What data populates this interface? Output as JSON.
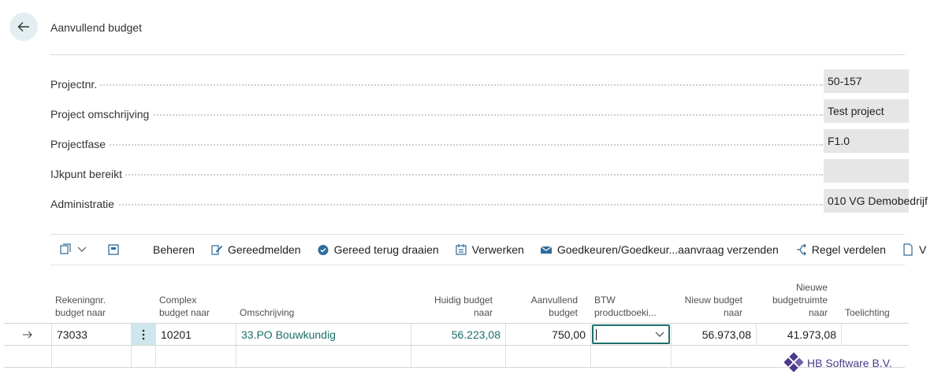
{
  "header": {
    "title": "Aanvullend budget"
  },
  "fields": [
    {
      "label": "Projectnr.",
      "value": "50-157"
    },
    {
      "label": "Project omschrijving",
      "value": "Test project"
    },
    {
      "label": "Projectfase",
      "value": "F1.0"
    },
    {
      "label": "IJkpunt bereikt",
      "value": ""
    },
    {
      "label": "Administratie",
      "value": "010 VG Demobedrijf"
    }
  ],
  "toolbar": {
    "manage": "Beheren",
    "ready": "Gereedmelden",
    "undo_ready": "Gereed terug draaien",
    "process": "Verwerken",
    "approve": "Goedkeuren/Goedkeur...aanvraag verzenden",
    "distribute": "Regel verdelen",
    "more": "V"
  },
  "columns": {
    "account_l1": "Rekeningnr.",
    "account_l2": "budget naar",
    "complex_l1": "Complex",
    "complex_l2": "budget naar",
    "description": "Omschrijving",
    "current_l1": "Huidig budget",
    "current_l2": "naar",
    "additional_l1": "Aanvullend",
    "additional_l2": "budget",
    "vat_l1": "BTW",
    "vat_l2": "productboeki...",
    "new_l1": "Nieuw budget",
    "new_l2": "naar",
    "room_l1": "Nieuwe",
    "room_l2": "budgetruimte",
    "room_l3": "naar",
    "note": "Toelichting"
  },
  "rows": [
    {
      "account": "73033",
      "complex": "10201",
      "description": "33.PO Bouwkundig",
      "current": "56.223,08",
      "additional": "750,00",
      "vat": "",
      "new_budget": "56.973,08",
      "room": "41.973,08",
      "note": ""
    }
  ],
  "brand": {
    "name": "HB Software B.V.",
    "accent": "#1b6f6b",
    "logo_color": "#4b3a8c"
  },
  "icons": [
    "back-arrow-icon",
    "edit-pencil-icon",
    "check-badge-icon",
    "process-icon",
    "approve-mail-icon",
    "split-icon"
  ]
}
